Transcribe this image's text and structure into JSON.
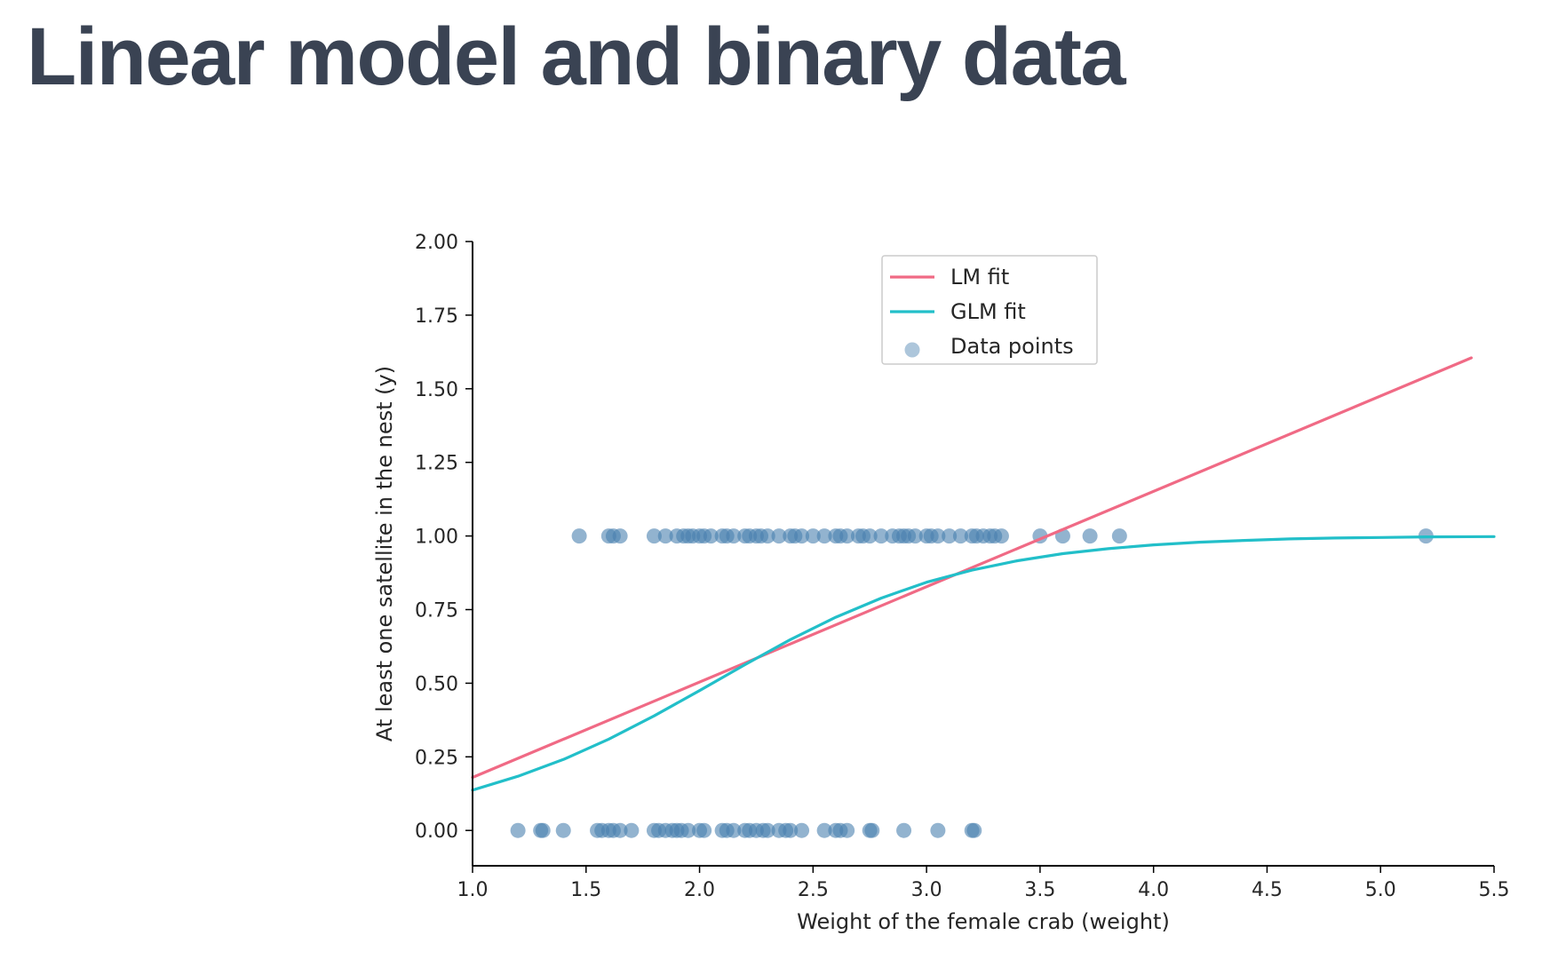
{
  "page": {
    "title": "Linear model and binary data"
  },
  "chart_data": {
    "type": "scatter",
    "xlabel": "Weight of the female crab (weight)",
    "ylabel": "At least one satellite in the nest (y)",
    "xlim": [
      1.0,
      5.5
    ],
    "ylim": [
      -0.12,
      2.0
    ],
    "x_ticks": [
      "1.0",
      "1.5",
      "2.0",
      "2.5",
      "3.0",
      "3.5",
      "4.0",
      "4.5",
      "5.0",
      "5.5"
    ],
    "y_ticks": [
      "0.00",
      "0.25",
      "0.50",
      "0.75",
      "1.00",
      "1.25",
      "1.50",
      "1.75",
      "2.00"
    ],
    "grid": false,
    "legend_position": "top-center",
    "legend": [
      {
        "label": "LM fit",
        "kind": "line",
        "color": "#f06a85"
      },
      {
        "label": "GLM fit",
        "kind": "line",
        "color": "#22bfc9"
      },
      {
        "label": "Data points",
        "kind": "marker",
        "color": "#4a81af"
      }
    ],
    "series": [
      {
        "name": "LM fit",
        "kind": "line",
        "color": "#f06a85",
        "x": [
          1.0,
          5.4
        ],
        "y": [
          0.18,
          1.605
        ]
      },
      {
        "name": "GLM fit",
        "kind": "line",
        "color": "#22bfc9",
        "x": [
          1.0,
          1.2,
          1.4,
          1.6,
          1.8,
          2.0,
          2.2,
          2.4,
          2.6,
          2.8,
          3.0,
          3.2,
          3.4,
          3.6,
          3.8,
          4.0,
          4.2,
          4.4,
          4.6,
          4.8,
          5.0,
          5.2,
          5.5
        ],
        "y": [
          0.137,
          0.184,
          0.241,
          0.31,
          0.389,
          0.475,
          0.563,
          0.648,
          0.724,
          0.789,
          0.843,
          0.884,
          0.916,
          0.94,
          0.957,
          0.97,
          0.979,
          0.985,
          0.99,
          0.993,
          0.995,
          0.997,
          0.998
        ]
      },
      {
        "name": "Data points",
        "kind": "scatter",
        "color": "#4a81af",
        "points_y1": [
          1.47,
          1.6,
          1.62,
          1.65,
          1.8,
          1.85,
          1.9,
          1.93,
          1.95,
          1.97,
          2.0,
          2.02,
          2.05,
          2.1,
          2.12,
          2.15,
          2.2,
          2.22,
          2.25,
          2.27,
          2.3,
          2.35,
          2.4,
          2.42,
          2.45,
          2.5,
          2.55,
          2.6,
          2.62,
          2.65,
          2.7,
          2.72,
          2.75,
          2.8,
          2.85,
          2.88,
          2.9,
          2.92,
          2.95,
          3.0,
          3.02,
          3.05,
          3.1,
          3.15,
          3.2,
          3.22,
          3.25,
          3.28,
          3.3,
          3.33,
          3.5,
          3.6,
          3.72,
          3.85,
          5.2
        ],
        "points_y0": [
          1.2,
          1.3,
          1.31,
          1.4,
          1.55,
          1.57,
          1.6,
          1.62,
          1.65,
          1.7,
          1.8,
          1.82,
          1.85,
          1.88,
          1.9,
          1.92,
          1.95,
          2.0,
          2.02,
          2.1,
          2.12,
          2.15,
          2.2,
          2.22,
          2.25,
          2.28,
          2.3,
          2.35,
          2.38,
          2.4,
          2.45,
          2.55,
          2.6,
          2.62,
          2.65,
          2.75,
          2.76,
          2.9,
          3.05,
          3.2,
          3.21
        ]
      }
    ]
  }
}
